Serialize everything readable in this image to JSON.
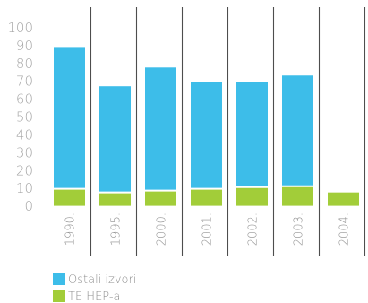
{
  "chart_data": {
    "type": "bar",
    "stacked": true,
    "categories": [
      "1990.",
      "1995.",
      "2000.",
      "2001.",
      "2002.",
      "2003.",
      "2004."
    ],
    "series": [
      {
        "name": "Ostali izvori",
        "color": "#3dbde9",
        "values": [
          79.5,
          59.5,
          69,
          60,
          59,
          62,
          null
        ]
      },
      {
        "name": "TE HEP-a",
        "color": "#a2cd39",
        "values": [
          9.5,
          7.5,
          8.5,
          9.5,
          10.5,
          11,
          7.5
        ]
      }
    ],
    "ylim": [
      0,
      100
    ],
    "yticks": [
      0,
      10,
      20,
      30,
      40,
      50,
      60,
      70,
      80,
      90,
      100
    ],
    "legend_position": "bottom-left",
    "grid": false,
    "title": "",
    "xlabel": "",
    "ylabel": ""
  }
}
